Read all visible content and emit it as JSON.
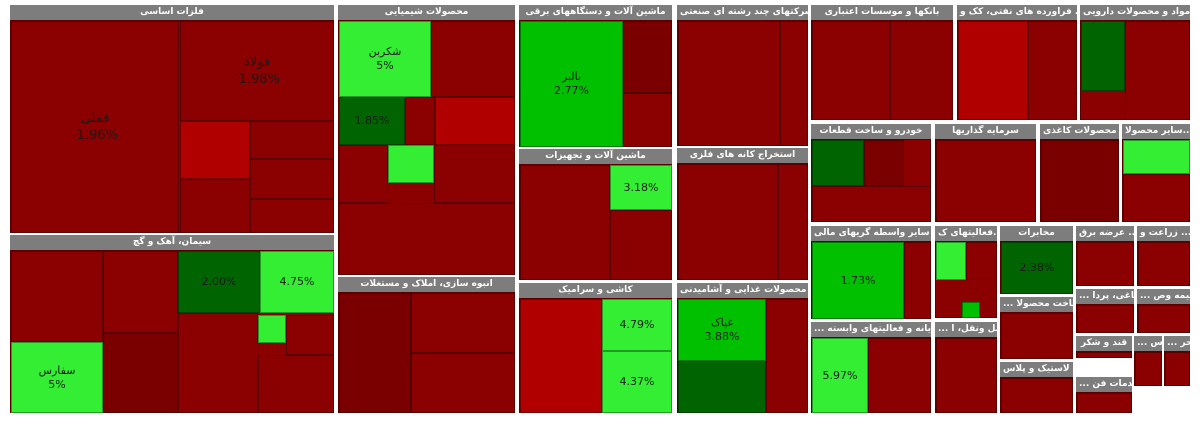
{
  "chart_data": {
    "type": "treemap",
    "colors": {
      "deep_red": "#7a0000",
      "red": "#8b0000",
      "bright_red": "#b00000",
      "green": "#00c000",
      "light_green": "#33ee33",
      "dark_green": "#006400",
      "header": "#7d7d7d"
    },
    "sectors": [
      {
        "id": "s1",
        "name": "فلزات اساسی",
        "cells": [
          {
            "id": "a1",
            "name": "فملی",
            "value": "-1.96%",
            "color": "red"
          },
          {
            "id": "a2",
            "name": "فولاد",
            "value": "-1.98%",
            "color": "red"
          },
          {
            "id": "a3",
            "name": "",
            "value": "",
            "color": "bright_red"
          },
          {
            "id": "a4",
            "name": "",
            "value": "",
            "color": "red"
          },
          {
            "id": "a5",
            "name": "",
            "value": "",
            "color": "red"
          },
          {
            "id": "a6",
            "name": "",
            "value": "",
            "color": "red"
          },
          {
            "id": "a7",
            "name": "",
            "value": "",
            "color": "red"
          }
        ]
      },
      {
        "id": "s2",
        "name": "سیمان، آهک و گچ",
        "cells": [
          {
            "id": "b1",
            "name": "",
            "value": "",
            "color": "red"
          },
          {
            "id": "b2",
            "name": "",
            "value": "",
            "color": "red"
          },
          {
            "id": "b3",
            "name": "",
            "value": "2.00%",
            "color": "dark_green"
          },
          {
            "id": "b4",
            "name": "",
            "value": "4.75%",
            "color": "light_green"
          },
          {
            "id": "b5",
            "name": "سفارس",
            "value": "5%",
            "color": "light_green"
          },
          {
            "id": "b6",
            "name": "",
            "value": "",
            "color": "deep_red"
          },
          {
            "id": "b7",
            "name": "",
            "value": "",
            "color": "light_green"
          },
          {
            "id": "b8",
            "name": "",
            "value": "",
            "color": "red"
          },
          {
            "id": "b9",
            "name": "",
            "value": "",
            "color": "red"
          },
          {
            "id": "b10",
            "name": "",
            "value": "",
            "color": "red"
          }
        ]
      },
      {
        "id": "s3",
        "name": "محصولات شیمیایی",
        "cells": [
          {
            "id": "c1",
            "name": "شکربن",
            "value": "5%",
            "color": "light_green"
          },
          {
            "id": "c2",
            "name": "",
            "value": "",
            "color": "red"
          },
          {
            "id": "c3",
            "name": "",
            "value": "1.85%",
            "color": "dark_green"
          },
          {
            "id": "c4",
            "name": "",
            "value": "",
            "color": "red"
          },
          {
            "id": "c5",
            "name": "",
            "value": "",
            "color": "bright_red"
          },
          {
            "id": "c6",
            "name": "",
            "value": "",
            "color": "light_green"
          },
          {
            "id": "c7",
            "name": "",
            "value": "",
            "color": "red"
          },
          {
            "id": "c8",
            "name": "",
            "value": "",
            "color": "red"
          },
          {
            "id": "c9",
            "name": "",
            "value": "",
            "color": "red"
          }
        ]
      },
      {
        "id": "s4",
        "name": "انبوه سازی، املاک و مستغلات",
        "cells": [
          {
            "id": "d1",
            "name": "",
            "value": "",
            "color": "deep_red"
          },
          {
            "id": "d2",
            "name": "",
            "value": "",
            "color": "red"
          },
          {
            "id": "d3",
            "name": "",
            "value": "",
            "color": "red"
          }
        ]
      },
      {
        "id": "s5",
        "name": "ماشین آلات و دستگاههای برقی",
        "cells": [
          {
            "id": "e1",
            "name": "بالبر",
            "value": "2.77%",
            "color": "green"
          },
          {
            "id": "e2",
            "name": "",
            "value": "",
            "color": "deep_red"
          },
          {
            "id": "e3",
            "name": "",
            "value": "",
            "color": "red"
          }
        ]
      },
      {
        "id": "s6",
        "name": "ماشین آلات و تجهیزات",
        "cells": [
          {
            "id": "f1",
            "name": "",
            "value": "",
            "color": "red"
          },
          {
            "id": "f2",
            "name": "",
            "value": "3.18%",
            "color": "light_green"
          },
          {
            "id": "f3",
            "name": "",
            "value": "",
            "color": "red"
          }
        ]
      },
      {
        "id": "s7",
        "name": "کاشی و سرامیک",
        "cells": [
          {
            "id": "g1",
            "name": "",
            "value": "",
            "color": "bright_red"
          },
          {
            "id": "g2",
            "name": "",
            "value": "4.79%",
            "color": "light_green"
          },
          {
            "id": "g3",
            "name": "",
            "value": "4.37%",
            "color": "light_green"
          }
        ]
      },
      {
        "id": "s8",
        "name": "شرکتهای چند رشته ای صنعتی",
        "cells": [
          {
            "id": "h1",
            "name": "",
            "value": "",
            "color": "red"
          },
          {
            "id": "h2",
            "name": "",
            "value": "",
            "color": "red"
          }
        ]
      },
      {
        "id": "s9",
        "name": "استخراج کانه های فلزی",
        "cells": [
          {
            "id": "i1",
            "name": "",
            "value": "",
            "color": "red"
          },
          {
            "id": "i2",
            "name": "",
            "value": "",
            "color": "red"
          }
        ]
      },
      {
        "id": "s10",
        "name": "محصولات غذایی و آشامیدنی ...",
        "cells": [
          {
            "id": "j1",
            "name": "غپاک",
            "value": "3.88%",
            "color": "green"
          },
          {
            "id": "j2",
            "name": "",
            "value": "",
            "color": "light_green"
          },
          {
            "id": "j3",
            "name": "",
            "value": "",
            "color": "dark_green"
          },
          {
            "id": "j4",
            "name": "",
            "value": "",
            "color": "red"
          }
        ]
      },
      {
        "id": "s11",
        "name": "بانکها و موسسات اعتباری",
        "cells": [
          {
            "id": "k1",
            "name": "",
            "value": "",
            "color": "red"
          },
          {
            "id": "k2",
            "name": "",
            "value": "",
            "color": "red"
          }
        ]
      },
      {
        "id": "s12",
        "name": "فراورده های نفتی، کک و ...",
        "cells": [
          {
            "id": "l1",
            "name": "",
            "value": "",
            "color": "bright_red"
          },
          {
            "id": "l2",
            "name": "",
            "value": "",
            "color": "red"
          }
        ]
      },
      {
        "id": "s13",
        "name": "مواد و محصولات دارویی",
        "cells": [
          {
            "id": "m1",
            "name": "",
            "value": "",
            "color": "dark_green"
          },
          {
            "id": "m2",
            "name": "",
            "value": "",
            "color": "red"
          }
        ]
      },
      {
        "id": "s14",
        "name": "خودرو و ساخت قطعات",
        "cells": [
          {
            "id": "n1",
            "name": "",
            "value": "",
            "color": "dark_green"
          },
          {
            "id": "n2",
            "name": "",
            "value": "",
            "color": "deep_red"
          },
          {
            "id": "n3",
            "name": "",
            "value": "",
            "color": "red"
          }
        ]
      },
      {
        "id": "s15",
        "name": "سرمایه گذاریها",
        "cells": [
          {
            "id": "o1",
            "name": "",
            "value": "",
            "color": "red"
          }
        ]
      },
      {
        "id": "s16",
        "name": "محصولات کاغذی",
        "cells": [
          {
            "id": "p1",
            "name": "",
            "value": "",
            "color": "deep_red"
          }
        ]
      },
      {
        "id": "s17",
        "name": "سایر محصولا...",
        "cells": [
          {
            "id": "q1",
            "name": "",
            "value": "",
            "color": "light_green"
          },
          {
            "id": "q2",
            "name": "",
            "value": "",
            "color": "red"
          }
        ]
      },
      {
        "id": "s18",
        "name": "سایر واسطه گریهای مالی",
        "cells": [
          {
            "id": "r1",
            "name": "",
            "value": "1.73%",
            "color": "green"
          },
          {
            "id": "r2",
            "name": "",
            "value": "",
            "color": "red"
          }
        ]
      },
      {
        "id": "s19",
        "name": "زراعت و ...",
        "cells": [
          {
            "id": "r3",
            "name": "",
            "value": "",
            "color": "red"
          }
        ]
      },
      {
        "id": "s20",
        "name": "عرضه برق ...",
        "cells": [
          {
            "id": "r4",
            "name": "",
            "value": "",
            "color": "red"
          }
        ]
      },
      {
        "id": "s21",
        "name": "فعالیتهای ک...",
        "cells": [
          {
            "id": "t1",
            "name": "",
            "value": "",
            "color": "light_green"
          },
          {
            "id": "t2",
            "name": "",
            "value": "",
            "color": "green"
          },
          {
            "id": "t3",
            "name": "",
            "value": "",
            "color": "red"
          }
        ]
      },
      {
        "id": "s22",
        "name": "مخابرات",
        "cells": [
          {
            "id": "u1",
            "name": "",
            "value": "2.38%",
            "color": "dark_green"
          }
        ]
      },
      {
        "id": "s23",
        "name": "... ساخت محصولا",
        "cells": [
          {
            "id": "v1",
            "name": "",
            "value": "",
            "color": "red"
          }
        ]
      },
      {
        "id": "s24",
        "name": "... رایانه و فعالیتهای وابسته",
        "cells": [
          {
            "id": "w1",
            "name": "",
            "value": "5.97%",
            "color": "light_green"
          },
          {
            "id": "w2",
            "name": "",
            "value": "",
            "color": "red"
          }
        ]
      },
      {
        "id": "s25",
        "name": "... حمل ونقل، ا",
        "cells": [
          {
            "id": "x1",
            "name": "",
            "value": "",
            "color": "red"
          }
        ]
      },
      {
        "id": "s26",
        "name": "لاستیک و پلاس ...",
        "cells": [
          {
            "id": "y1",
            "name": "",
            "value": "",
            "color": "red"
          }
        ]
      },
      {
        "id": "s27",
        "name": "... دباغی، پردا",
        "cells": [
          {
            "id": "z1",
            "name": "",
            "value": "",
            "color": "red"
          }
        ]
      },
      {
        "id": "s28",
        "name": "... بیمه وص",
        "cells": [
          {
            "id": "z2",
            "name": "",
            "value": "",
            "color": "red"
          }
        ]
      },
      {
        "id": "s29",
        "name": "قند و شکر",
        "cells": [
          {
            "id": "z3",
            "name": "",
            "value": "",
            "color": "red"
          }
        ]
      },
      {
        "id": "s30",
        "name": "... اس",
        "cells": [
          {
            "id": "z4",
            "name": "",
            "value": "",
            "color": "red"
          }
        ]
      },
      {
        "id": "s31",
        "name": "... حر",
        "cells": [
          {
            "id": "z5",
            "name": "",
            "value": "",
            "color": "red"
          }
        ]
      },
      {
        "id": "s32",
        "name": "... خدمات فن",
        "cells": [
          {
            "id": "z6",
            "name": "",
            "value": "",
            "color": "red"
          }
        ]
      }
    ]
  }
}
